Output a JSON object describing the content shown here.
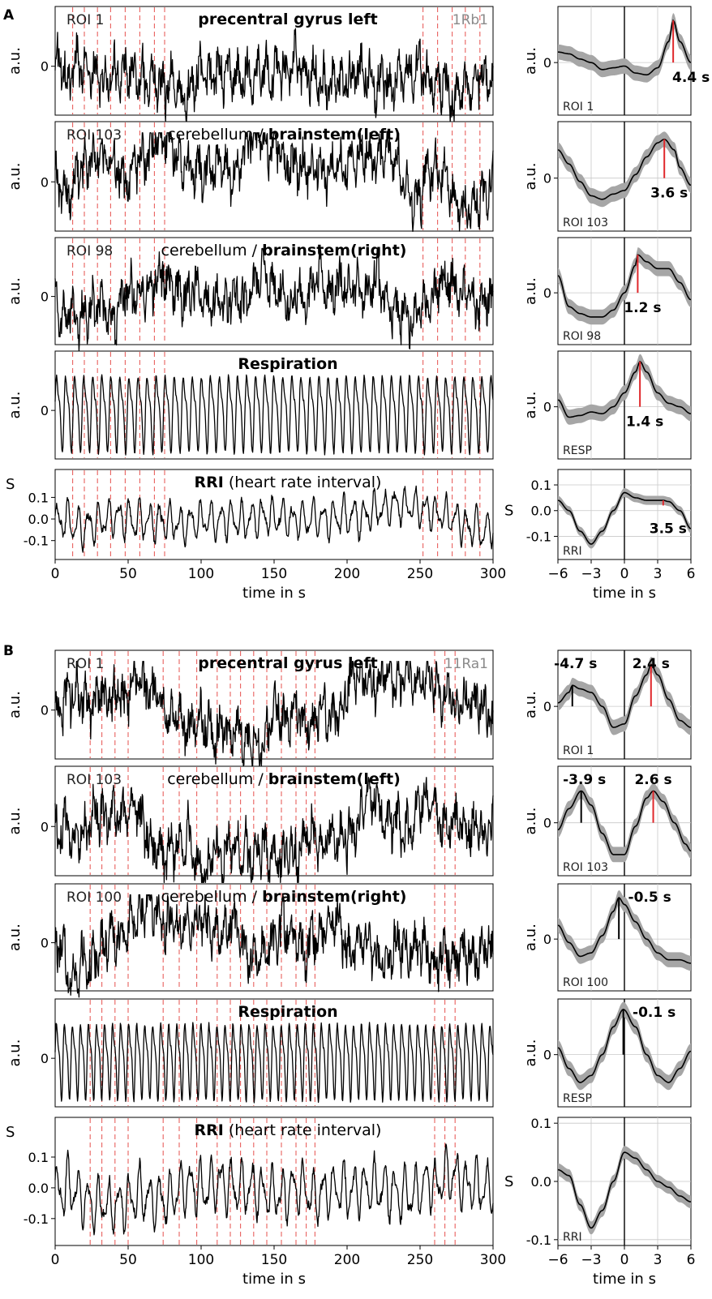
{
  "figure": {
    "panel_letters": [
      "A",
      "B"
    ],
    "x_axis_label": "time in s",
    "y_axis_label": "a.u.",
    "rri_y_label": "S",
    "signal_x_ticks": [
      0,
      50,
      100,
      150,
      200,
      250,
      300
    ],
    "avg_x_ticks": [
      -6,
      -3,
      0,
      3,
      6
    ]
  },
  "colors": {
    "trace": "#000000",
    "event_line": "#e8605e",
    "ci_band": "#a6a6a6",
    "marker_red": "#e0282c",
    "grid": "#c8c8c8",
    "subject_label": "#8a8a8a"
  },
  "chart_data": [
    {
      "panel": "A",
      "type": "line",
      "subject": "1Rb1",
      "event_times": [
        12,
        20,
        29,
        38,
        48,
        58,
        68,
        75,
        252,
        262,
        272,
        281,
        291
      ],
      "xlim": [
        0,
        300
      ],
      "rows": [
        {
          "name": "precentral gyrus  left",
          "roi": "ROI 1",
          "region_plain": "",
          "region_bold": "precentral gyrus  left",
          "short_label": "ROI 1",
          "ylabel": "a.u.",
          "yticks": [
            "0"
          ],
          "avg": {
            "points": [
              [
                -6,
                0.3
              ],
              [
                -5,
                0.25
              ],
              [
                -4,
                0.1
              ],
              [
                -3,
                0.0
              ],
              [
                -2,
                -0.2
              ],
              [
                -1,
                -0.15
              ],
              [
                0,
                -0.1
              ],
              [
                1,
                -0.3
              ],
              [
                2,
                -0.35
              ],
              [
                3,
                -0.15
              ],
              [
                4,
                0.6
              ],
              [
                4.4,
                1.2
              ],
              [
                5,
                0.6
              ],
              [
                6,
                0.0
              ]
            ],
            "markers": [
              {
                "t": 4.4,
                "value": 1.2,
                "label": "4.4 s",
                "color": "red"
              }
            ],
            "ylim": [
              -1.5,
              1.6
            ]
          }
        },
        {
          "name": "cerebellum / brainstem(left)",
          "roi": "ROI 103",
          "region_plain": "cerebellum / ",
          "region_bold": "brainstem(left)",
          "short_label": "ROI 103",
          "ylabel": "a.u.",
          "yticks": [
            "0"
          ],
          "avg": {
            "points": [
              [
                -6,
                0.8
              ],
              [
                -5,
                0.4
              ],
              [
                -4,
                -0.1
              ],
              [
                -3,
                -0.5
              ],
              [
                -2,
                -0.6
              ],
              [
                -1,
                -0.45
              ],
              [
                0,
                -0.35
              ],
              [
                1,
                0.1
              ],
              [
                2,
                0.6
              ],
              [
                3,
                1.0
              ],
              [
                3.6,
                1.1
              ],
              [
                4.5,
                0.8
              ],
              [
                5,
                0.3
              ],
              [
                6,
                -0.2
              ]
            ],
            "markers": [
              {
                "t": 3.6,
                "value": 1.1,
                "label": "3.6 s",
                "color": "red"
              }
            ],
            "ylim": [
              -1.5,
              1.6
            ]
          }
        },
        {
          "name": "cerebellum / brainstem(right)",
          "roi": "ROI 98",
          "region_plain": "cerebellum / ",
          "region_bold": "brainstem(right)",
          "short_label": "ROI 98",
          "ylabel": "a.u.",
          "yticks": [
            "0"
          ],
          "avg": {
            "points": [
              [
                -6,
                0.5
              ],
              [
                -5,
                -0.4
              ],
              [
                -4,
                -0.6
              ],
              [
                -3,
                -0.7
              ],
              [
                -2,
                -0.7
              ],
              [
                -1,
                -0.5
              ],
              [
                0,
                0.0
              ],
              [
                1,
                0.8
              ],
              [
                1.2,
                1.1
              ],
              [
                2,
                0.9
              ],
              [
                3,
                0.7
              ],
              [
                4,
                0.7
              ],
              [
                5,
                0.3
              ],
              [
                6,
                -0.2
              ]
            ],
            "markers": [
              {
                "t": 1.2,
                "value": 1.1,
                "label": "1.2 s",
                "color": "red"
              }
            ],
            "ylim": [
              -1.5,
              1.6
            ]
          }
        },
        {
          "name": "Respiration",
          "roi": "",
          "region_plain": "",
          "region_bold": "Respiration",
          "short_label": "RESP",
          "ylabel": "a.u.",
          "yticks": [
            "0"
          ],
          "avg": {
            "points": [
              [
                -6,
                0.2
              ],
              [
                -5,
                -0.3
              ],
              [
                -4,
                -0.25
              ],
              [
                -3,
                -0.15
              ],
              [
                -2,
                -0.2
              ],
              [
                -1,
                0.0
              ],
              [
                0,
                0.4
              ],
              [
                1,
                1.0
              ],
              [
                1.4,
                1.3
              ],
              [
                2,
                1.0
              ],
              [
                3,
                0.4
              ],
              [
                4,
                0.1
              ],
              [
                5,
                0.0
              ],
              [
                6,
                -0.2
              ]
            ],
            "markers": [
              {
                "t": 1.4,
                "value": 1.3,
                "label": "1.4 s",
                "color": "red"
              }
            ],
            "ylim": [
              -1.5,
              1.6
            ]
          }
        },
        {
          "name": "RRI (heart rate interval)",
          "roi": "",
          "region_plain": " (heart rate interval)",
          "region_bold": "RRI",
          "short_label": "RRI",
          "ylabel": "S",
          "yticks": [
            "0.1",
            "0.0",
            "-0.1"
          ],
          "avg": {
            "points": [
              [
                -6,
                0.04
              ],
              [
                -5,
                0.0
              ],
              [
                -4,
                -0.08
              ],
              [
                -3,
                -0.13
              ],
              [
                -2,
                -0.08
              ],
              [
                -1,
                0.0
              ],
              [
                0,
                0.07
              ],
              [
                1,
                0.05
              ],
              [
                2,
                0.04
              ],
              [
                3,
                0.04
              ],
              [
                3.5,
                0.04
              ],
              [
                4,
                0.035
              ],
              [
                5,
                0.0
              ],
              [
                6,
                -0.07
              ]
            ],
            "markers": [
              {
                "t": 3.5,
                "value": 0.04,
                "label": "3.5 s",
                "color": "red"
              }
            ],
            "ylim": [
              -0.19,
              0.16
            ],
            "tick_values": [
              0.1,
              0.0,
              -0.1
            ]
          }
        }
      ]
    },
    {
      "panel": "B",
      "type": "line",
      "subject": "11Ra1",
      "event_times": [
        24,
        32,
        41,
        50,
        74,
        85,
        97,
        111,
        120,
        127,
        136,
        145,
        155,
        165,
        172,
        178,
        260,
        267,
        274
      ],
      "xlim": [
        0,
        300
      ],
      "rows": [
        {
          "name": "precentral gyrus  left",
          "roi": "ROI 1",
          "region_plain": "",
          "region_bold": "precentral gyrus  left",
          "short_label": "ROI 1",
          "ylabel": "a.u.",
          "yticks": [
            "0"
          ],
          "avg": {
            "points": [
              [
                -6,
                0.1
              ],
              [
                -5,
                0.4
              ],
              [
                -4.7,
                0.6
              ],
              [
                -4,
                0.5
              ],
              [
                -3,
                0.4
              ],
              [
                -2,
                0.0
              ],
              [
                -1,
                -0.6
              ],
              [
                0,
                -0.5
              ],
              [
                1,
                0.3
              ],
              [
                2,
                0.9
              ],
              [
                2.4,
                1.2
              ],
              [
                3,
                0.9
              ],
              [
                4,
                0.2
              ],
              [
                5,
                -0.4
              ],
              [
                6,
                -0.6
              ]
            ],
            "markers": [
              {
                "t": -4.7,
                "value": 0.6,
                "label": "-4.7 s",
                "color": "black"
              },
              {
                "t": 2.4,
                "value": 1.2,
                "label": "2.4 s",
                "color": "red"
              }
            ],
            "ylim": [
              -1.5,
              1.6
            ]
          }
        },
        {
          "name": "cerebellum / brainstem(left)",
          "roi": "ROI 103",
          "region_plain": "cerebellum / ",
          "region_bold": "brainstem(left)",
          "short_label": "ROI 103",
          "ylabel": "a.u.",
          "yticks": [
            "0"
          ],
          "avg": {
            "points": [
              [
                -6,
                -0.2
              ],
              [
                -5,
                0.4
              ],
              [
                -3.9,
                0.9
              ],
              [
                -3,
                0.5
              ],
              [
                -2,
                -0.3
              ],
              [
                -1,
                -0.9
              ],
              [
                0,
                -0.9
              ],
              [
                1,
                -0.1
              ],
              [
                2,
                0.7
              ],
              [
                2.6,
                0.9
              ],
              [
                3.5,
                0.6
              ],
              [
                4.5,
                0.0
              ],
              [
                5.5,
                -0.6
              ],
              [
                6,
                -0.8
              ]
            ],
            "markers": [
              {
                "t": -3.9,
                "value": 0.9,
                "label": "-3.9 s",
                "color": "black"
              },
              {
                "t": 2.6,
                "value": 0.9,
                "label": "2.6 s",
                "color": "red"
              }
            ],
            "ylim": [
              -1.5,
              1.6
            ]
          }
        },
        {
          "name": "cerebellum / brainstem(right)",
          "roi": "ROI 100",
          "region_plain": "cerebellum / ",
          "region_bold": "brainstem(right)",
          "short_label": "ROI 100",
          "ylabel": "a.u.",
          "yticks": [
            "0"
          ],
          "avg": {
            "points": [
              [
                -6,
                0.4
              ],
              [
                -5,
                -0.1
              ],
              [
                -4,
                -0.5
              ],
              [
                -3,
                -0.4
              ],
              [
                -2,
                0.1
              ],
              [
                -1,
                0.8
              ],
              [
                -0.5,
                1.2
              ],
              [
                0,
                1.0
              ],
              [
                1,
                0.5
              ],
              [
                2,
                0.0
              ],
              [
                3,
                -0.4
              ],
              [
                4,
                -0.6
              ],
              [
                5,
                -0.6
              ],
              [
                6,
                -0.7
              ]
            ],
            "markers": [
              {
                "t": -0.5,
                "value": 1.2,
                "label": "-0.5 s",
                "color": "black"
              }
            ],
            "ylim": [
              -1.5,
              1.6
            ]
          }
        },
        {
          "name": "Respiration",
          "roi": "",
          "region_plain": "",
          "region_bold": "Respiration",
          "short_label": "RESP",
          "ylabel": "a.u.",
          "yticks": [
            "0"
          ],
          "avg": {
            "points": [
              [
                -6,
                0.2
              ],
              [
                -5,
                -0.4
              ],
              [
                -4,
                -0.8
              ],
              [
                -3,
                -0.6
              ],
              [
                -2,
                0.0
              ],
              [
                -1,
                0.8
              ],
              [
                -0.1,
                1.3
              ],
              [
                1,
                0.8
              ],
              [
                2,
                0.0
              ],
              [
                3,
                -0.6
              ],
              [
                4,
                -0.8
              ],
              [
                5,
                -0.4
              ],
              [
                6,
                0.1
              ]
            ],
            "markers": [
              {
                "t": -0.1,
                "value": 1.3,
                "label": "-0.1 s",
                "color": "black"
              }
            ],
            "ylim": [
              -1.5,
              1.6
            ]
          }
        },
        {
          "name": "RRI (heart rate interval)",
          "roi": "",
          "region_plain": " (heart rate interval)",
          "region_bold": "RRI",
          "short_label": "RRI",
          "ylabel": "S",
          "yticks": [
            "0.1",
            "0.0",
            "-0.1"
          ],
          "avg": {
            "points": [
              [
                -6,
                0.02
              ],
              [
                -5,
                0.01
              ],
              [
                -4,
                -0.04
              ],
              [
                -3,
                -0.08
              ],
              [
                -2,
                -0.05
              ],
              [
                -1,
                0.0
              ],
              [
                0,
                0.05
              ],
              [
                1,
                0.04
              ],
              [
                2,
                0.02
              ],
              [
                3,
                0.0
              ],
              [
                4,
                -0.01
              ],
              [
                5,
                -0.025
              ],
              [
                6,
                -0.035
              ]
            ],
            "markers": [],
            "ylim": [
              -0.11,
              0.11
            ],
            "tick_values": [
              0.1,
              0.0,
              -0.1
            ]
          }
        }
      ]
    }
  ]
}
